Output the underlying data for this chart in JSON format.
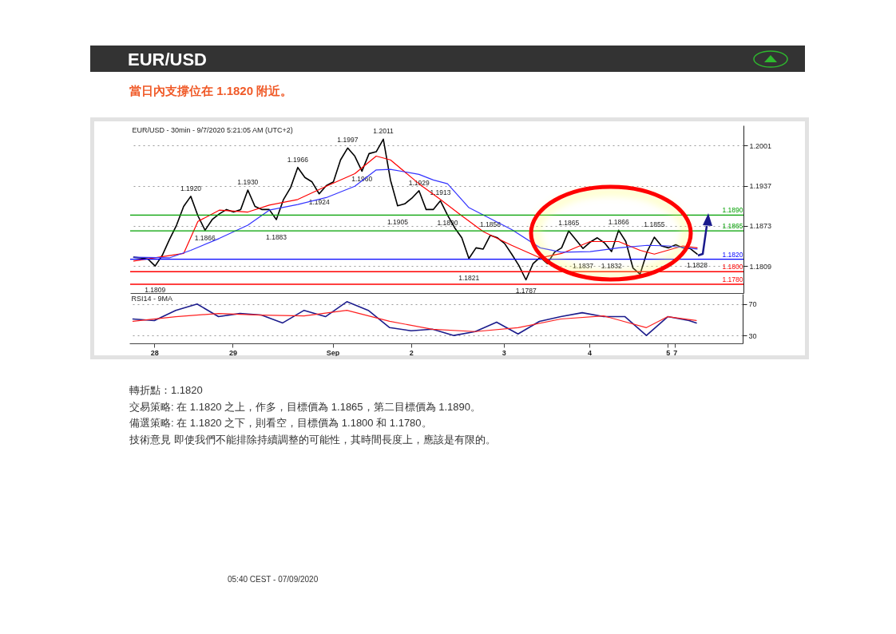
{
  "chart_data": [
    {
      "type": "line",
      "title": "EUR/USD",
      "subtitle": "當日內支撐位在 1.1820 附近。",
      "categories": [
        null,
        null,
        null,
        null,
        null,
        null,
        null,
        null,
        null,
        null,
        null,
        null,
        null,
        null,
        null,
        null,
        null,
        null,
        null,
        null,
        null,
        null,
        null,
        null,
        null,
        null,
        null,
        null,
        null,
        null,
        null,
        null,
        null,
        null,
        null,
        null,
        null,
        null,
        null,
        null,
        null,
        null,
        null,
        null,
        null,
        null,
        null,
        null,
        null,
        null,
        null,
        null,
        null,
        null,
        null,
        null,
        null,
        null,
        null,
        null,
        null,
        null,
        null,
        null,
        null,
        null,
        null,
        null,
        null,
        null,
        null,
        null,
        null,
        null,
        null,
        null,
        null,
        null,
        null,
        null,
        null,
        null,
        null,
        null,
        null,
        null
      ],
      "series": [
        {
          "color": "#000000",
          "values": [
            1.1823,
            1.1822,
            1.182,
            1.1809,
            1.1826,
            1.1851,
            1.1874,
            1.1904,
            1.192,
            1.1889,
            1.1866,
            1.1883,
            1.1892,
            1.1899,
            1.1895,
            1.1899,
            1.193,
            1.1904,
            1.1899,
            1.1899,
            1.1883,
            1.1915,
            1.1934,
            1.1966,
            1.195,
            1.1943,
            1.1924,
            1.1937,
            1.1943,
            1.1978,
            1.1997,
            1.1984,
            1.196,
            1.1988,
            1.1991,
            1.2011,
            1.1946,
            1.1905,
            1.1908,
            1.1917,
            1.1929,
            1.1899,
            1.1899,
            1.1913,
            1.189,
            1.187,
            1.1854,
            1.1821,
            1.1838,
            1.1836,
            1.1858,
            1.1854,
            1.1845,
            1.1828,
            1.181,
            1.1787,
            1.1813,
            1.1823,
            1.1813,
            1.1831,
            1.1838,
            1.1865,
            1.1851,
            1.1837,
            1.1847,
            1.1854,
            1.1846,
            1.1832,
            1.1866,
            1.1848,
            1.1806,
            1.1796,
            1.1832,
            1.1855,
            1.1841,
            1.1838,
            1.1843,
            1.1838,
            1.1837,
            1.1828,
            null,
            null,
            null,
            null,
            null,
            null
          ],
          "value_labels": [
            null,
            null,
            null,
            "1.1809",
            null,
            null,
            null,
            null,
            "1.1920",
            null,
            "1.1866",
            null,
            null,
            null,
            null,
            null,
            "1.1930",
            null,
            null,
            null,
            "1.1883",
            null,
            null,
            "1.1966",
            null,
            null,
            "1.1924",
            null,
            null,
            null,
            "1.1997",
            null,
            "1.1960",
            null,
            null,
            "1.2011",
            null,
            "1.1905",
            null,
            null,
            "1.1929",
            null,
            null,
            "1.1913",
            "1.1890",
            null,
            null,
            "1.1821",
            null,
            null,
            "1.1858",
            null,
            null,
            null,
            null,
            "1.1787",
            null,
            null,
            null,
            null,
            null,
            "1.1865",
            null,
            "1.1837",
            null,
            null,
            null,
            "1.1832",
            "1.1866",
            null,
            null,
            null,
            null,
            "1.1855",
            null,
            null,
            null,
            null,
            null,
            "1.1828",
            null,
            null,
            null,
            null,
            null,
            null
          ]
        },
        {
          "color": "#ff0000",
          "values": [
            1.1817,
            null,
            null,
            null,
            null,
            null,
            null,
            1.1829,
            null,
            1.188,
            null,
            null,
            1.1898,
            null,
            null,
            null,
            1.1895,
            null,
            null,
            1.1906,
            null,
            null,
            null,
            1.1915,
            null,
            null,
            null,
            1.1936,
            null,
            null,
            null,
            1.1956,
            null,
            null,
            1.1984,
            null,
            1.1978,
            null,
            null,
            null,
            1.194,
            null,
            null,
            1.1915,
            null,
            null,
            1.1889,
            null,
            null,
            1.1864,
            null,
            null,
            null,
            1.1842,
            null,
            null,
            null,
            1.1822,
            null,
            null,
            1.1829,
            null,
            null,
            null,
            1.1848,
            null,
            null,
            null,
            1.1848,
            null,
            null,
            1.1834,
            null,
            1.1828,
            null,
            null,
            null,
            1.1841,
            null,
            1.1838,
            null,
            null,
            null,
            null,
            null,
            null
          ]
        },
        {
          "color": "#3333ff",
          "values": [
            1.1823,
            null,
            null,
            null,
            null,
            1.1822,
            null,
            null,
            1.1834,
            null,
            null,
            null,
            1.1853,
            null,
            null,
            null,
            1.1874,
            null,
            null,
            1.1898,
            null,
            null,
            null,
            1.1907,
            null,
            null,
            null,
            1.1918,
            null,
            null,
            null,
            1.1936,
            null,
            null,
            1.1962,
            null,
            1.1963,
            null,
            null,
            null,
            1.1955,
            null,
            1.1946,
            null,
            1.194,
            null,
            null,
            1.1902,
            null,
            null,
            null,
            null,
            null,
            1.1867,
            null,
            null,
            null,
            1.1838,
            null,
            null,
            1.1831,
            null,
            null,
            null,
            1.1832,
            null,
            null,
            null,
            1.1838,
            null,
            null,
            null,
            1.1842,
            null,
            null,
            1.1841,
            null,
            null,
            null,
            1.1836,
            null,
            null,
            null,
            null,
            null,
            null
          ]
        }
      ],
      "ylim": [
        1.1766,
        1.2033
      ],
      "yticks": [
        1.1809,
        1.1873,
        1.1937,
        1.2001
      ],
      "grid": "y",
      "tick_labels": "y",
      "ref_lines": [
        {
          "axis": "y",
          "value": 1.189,
          "label": "1.1890",
          "color": "#00a000"
        },
        {
          "axis": "y",
          "value": 1.1865,
          "label": "1.1865",
          "color": "#00a000"
        },
        {
          "axis": "y",
          "value": 1.182,
          "label": "1.1820",
          "color": "#0000ff"
        },
        {
          "axis": "y",
          "value": 1.18,
          "label": "1.1800",
          "color": "#ff0000"
        },
        {
          "axis": "y",
          "value": 1.178,
          "label": "1.1780",
          "color": "#ff0000"
        }
      ],
      "annotations": [
        "EUR/USD - 30min - 9/7/2020 5:21:05 AM (UTC+2)",
        "轉折點：1.1820",
        "交易策略: 在 1.1820 之上，作多，目標價為  1.1865，第二目標價為 1.1890。",
        "備選策略: 在 1.1820 之下，則看空，目標價為  1.1800 和 1.1780。",
        "技術意見 即使我們不能排除持續調整的可能性，其時間長度上，應該是有限的。",
        "05:40 CEST - 07/09/2020"
      ]
    },
    {
      "type": "line",
      "title": "RSI14 - 9MA",
      "categories": [
        null,
        null,
        null,
        "28",
        null,
        null,
        null,
        null,
        null,
        null,
        null,
        null,
        null,
        null,
        "29",
        null,
        null,
        null,
        null,
        null,
        null,
        null,
        null,
        null,
        null,
        null,
        null,
        null,
        "Sep",
        null,
        null,
        null,
        null,
        null,
        null,
        null,
        null,
        null,
        null,
        "2",
        null,
        null,
        null,
        null,
        null,
        null,
        null,
        null,
        null,
        null,
        null,
        null,
        "3",
        null,
        null,
        null,
        null,
        null,
        null,
        null,
        null,
        null,
        null,
        null,
        "4",
        null,
        null,
        null,
        null,
        null,
        null,
        null,
        null,
        null,
        null,
        "5",
        "7",
        null,
        null,
        null,
        null,
        null,
        null,
        null,
        null,
        null
      ],
      "series": [
        {
          "color": "#1c1c8c",
          "values": [
            51,
            null,
            null,
            49,
            null,
            null,
            62,
            null,
            null,
            70,
            null,
            null,
            54,
            null,
            null,
            58,
            null,
            null,
            56,
            null,
            null,
            46,
            null,
            null,
            62,
            null,
            null,
            54,
            null,
            null,
            73,
            null,
            null,
            62,
            null,
            null,
            40,
            null,
            null,
            36,
            null,
            null,
            38,
            null,
            null,
            30,
            null,
            null,
            35,
            null,
            null,
            47,
            null,
            null,
            32,
            null,
            null,
            48,
            null,
            null,
            54,
            null,
            null,
            59,
            null,
            null,
            54,
            null,
            null,
            54,
            null,
            null,
            30,
            null,
            null,
            54,
            null,
            null,
            49,
            46,
            null,
            null,
            null,
            null,
            null,
            null
          ]
        },
        {
          "color": "#ff2020",
          "values": [
            48,
            null,
            null,
            null,
            null,
            null,
            54,
            null,
            null,
            null,
            null,
            null,
            58,
            null,
            null,
            null,
            null,
            null,
            56,
            null,
            null,
            null,
            null,
            null,
            55,
            null,
            null,
            null,
            null,
            null,
            62,
            null,
            null,
            null,
            null,
            null,
            48,
            null,
            null,
            null,
            null,
            null,
            38,
            null,
            null,
            null,
            null,
            null,
            35,
            null,
            null,
            null,
            null,
            null,
            40,
            null,
            null,
            null,
            null,
            null,
            51,
            null,
            null,
            null,
            null,
            null,
            55,
            null,
            null,
            null,
            null,
            null,
            40,
            null,
            null,
            54,
            null,
            null,
            null,
            49,
            null,
            null,
            null,
            null,
            null,
            null
          ]
        }
      ],
      "ylim": [
        20,
        83
      ],
      "yticks": [
        30,
        70
      ],
      "grid": "y"
    }
  ]
}
